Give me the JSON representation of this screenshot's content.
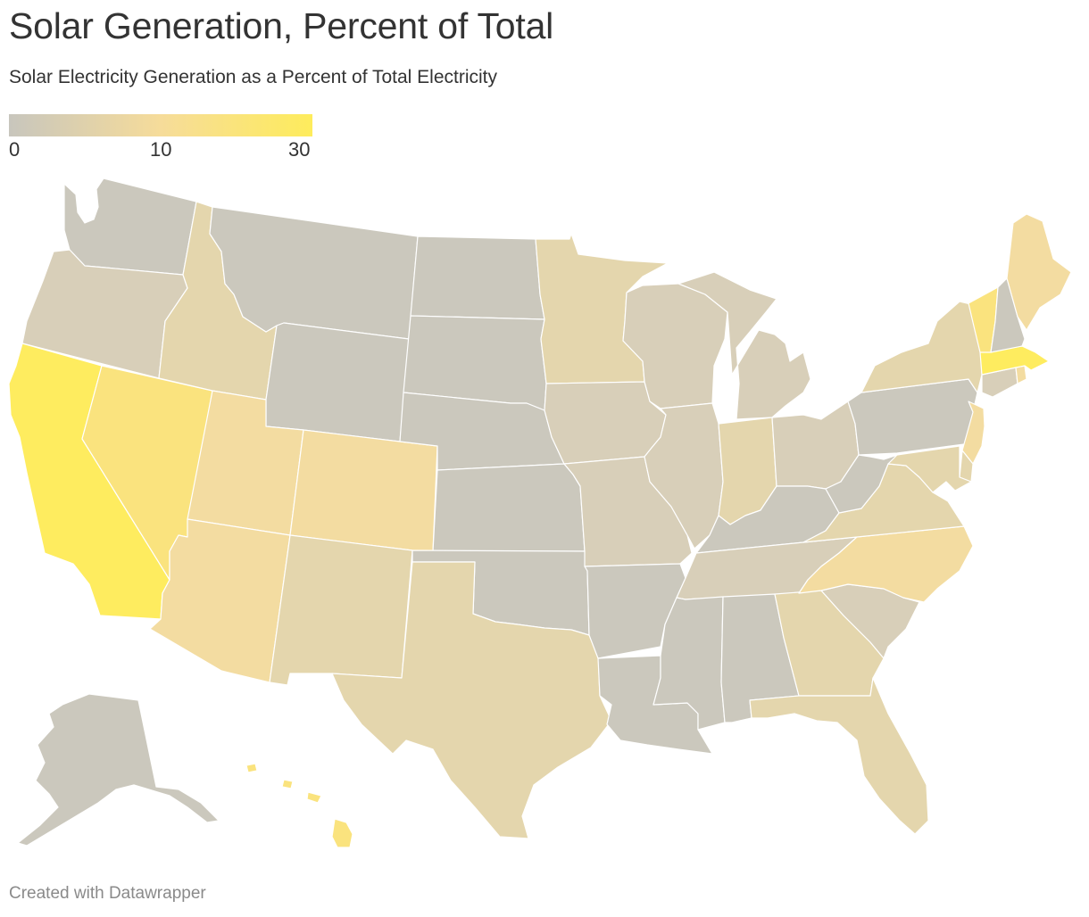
{
  "title": "Solar Generation, Percent of Total",
  "subtitle": "Solar Electricity Generation as a Percent of Total Electricity",
  "legend": {
    "ticks": [
      "0",
      "10",
      "30"
    ],
    "stops": [
      {
        "value": 0,
        "color": "#c8c6bd"
      },
      {
        "value": 10,
        "color": "#f6dc9a"
      },
      {
        "value": 30,
        "color": "#feec5c"
      }
    ]
  },
  "colors": {
    "gray": "#cbc8bd",
    "gray_tan": "#d8cfb9",
    "tan": "#e4d6ad",
    "light_yellow": "#f3dca1",
    "yellow": "#fae37e",
    "bright_yellow": "#feec5f"
  },
  "states": [
    {
      "id": "WA",
      "level": "gray"
    },
    {
      "id": "OR",
      "level": "gray_tan"
    },
    {
      "id": "CA",
      "level": "bright_yellow"
    },
    {
      "id": "NV",
      "level": "yellow"
    },
    {
      "id": "ID",
      "level": "tan"
    },
    {
      "id": "MT",
      "level": "gray"
    },
    {
      "id": "WY",
      "level": "gray"
    },
    {
      "id": "UT",
      "level": "light_yellow"
    },
    {
      "id": "AZ",
      "level": "light_yellow"
    },
    {
      "id": "CO",
      "level": "light_yellow"
    },
    {
      "id": "NM",
      "level": "tan"
    },
    {
      "id": "ND",
      "level": "gray"
    },
    {
      "id": "SD",
      "level": "gray"
    },
    {
      "id": "NE",
      "level": "gray"
    },
    {
      "id": "KS",
      "level": "gray"
    },
    {
      "id": "OK",
      "level": "gray"
    },
    {
      "id": "TX",
      "level": "tan"
    },
    {
      "id": "MN",
      "level": "tan"
    },
    {
      "id": "IA",
      "level": "gray_tan"
    },
    {
      "id": "MO",
      "level": "gray_tan"
    },
    {
      "id": "AR",
      "level": "gray"
    },
    {
      "id": "LA",
      "level": "gray"
    },
    {
      "id": "WI",
      "level": "gray_tan"
    },
    {
      "id": "IL",
      "level": "gray_tan"
    },
    {
      "id": "MI",
      "level": "gray_tan"
    },
    {
      "id": "IN",
      "level": "tan"
    },
    {
      "id": "OH",
      "level": "gray_tan"
    },
    {
      "id": "KY",
      "level": "gray"
    },
    {
      "id": "TN",
      "level": "gray_tan"
    },
    {
      "id": "MS",
      "level": "gray"
    },
    {
      "id": "AL",
      "level": "gray"
    },
    {
      "id": "GA",
      "level": "tan"
    },
    {
      "id": "FL",
      "level": "tan"
    },
    {
      "id": "SC",
      "level": "gray_tan"
    },
    {
      "id": "NC",
      "level": "light_yellow"
    },
    {
      "id": "VA",
      "level": "tan"
    },
    {
      "id": "WV",
      "level": "gray"
    },
    {
      "id": "PA",
      "level": "gray"
    },
    {
      "id": "NY",
      "level": "tan"
    },
    {
      "id": "VT",
      "level": "yellow"
    },
    {
      "id": "NH",
      "level": "gray"
    },
    {
      "id": "ME",
      "level": "light_yellow"
    },
    {
      "id": "MA",
      "level": "bright_yellow"
    },
    {
      "id": "RI",
      "level": "light_yellow"
    },
    {
      "id": "CT",
      "level": "gray_tan"
    },
    {
      "id": "NJ",
      "level": "light_yellow"
    },
    {
      "id": "DE",
      "level": "tan"
    },
    {
      "id": "MD",
      "level": "tan"
    },
    {
      "id": "AK",
      "level": "gray"
    },
    {
      "id": "HI",
      "level": "yellow"
    }
  ],
  "footer": "Created with Datawrapper"
}
